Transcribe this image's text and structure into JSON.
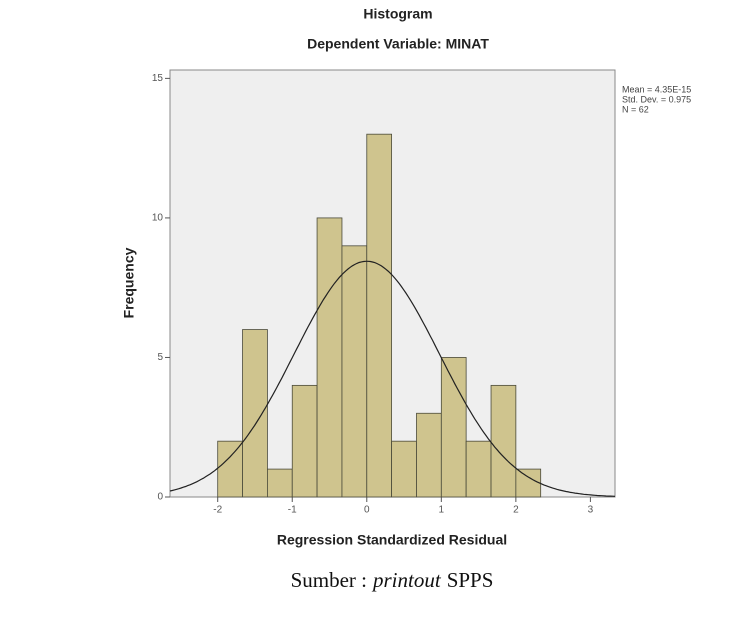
{
  "chart_data": {
    "type": "histogram",
    "title": "Histogram",
    "subtitle": "Dependent Variable: MINAT",
    "x_label": "Regression Standardized Residual",
    "y_label": "Frequency",
    "bins": [
      -2,
      -1.667,
      -1.333,
      -1,
      -0.667,
      -0.333,
      0,
      0.333,
      0.667,
      1,
      1.333,
      1.667,
      2,
      2.333
    ],
    "values": [
      2,
      6,
      1,
      4,
      10,
      9,
      13,
      2,
      3,
      5,
      2,
      4,
      1
    ],
    "color": "#cfc48e",
    "edge_color": "#4a4a3a",
    "curve_color": "#222222",
    "xlim": [
      -2.64,
      3.33
    ],
    "ylim": [
      0,
      15.3
    ],
    "xticks": [
      -2,
      -1,
      0,
      1,
      2,
      3
    ],
    "yticks": [
      0,
      5,
      10,
      15
    ],
    "stats": [
      {
        "value": 4.35e-15,
        "label": "Mean = 4.35E-15"
      },
      {
        "value": 0.975,
        "label": "Std. Dev. = 0.975"
      },
      {
        "value": 62,
        "label": "N = 62"
      }
    ]
  },
  "caption": {
    "prefix": "Sumber :",
    "emphasis": "printout",
    "suffix": "SPPS"
  }
}
